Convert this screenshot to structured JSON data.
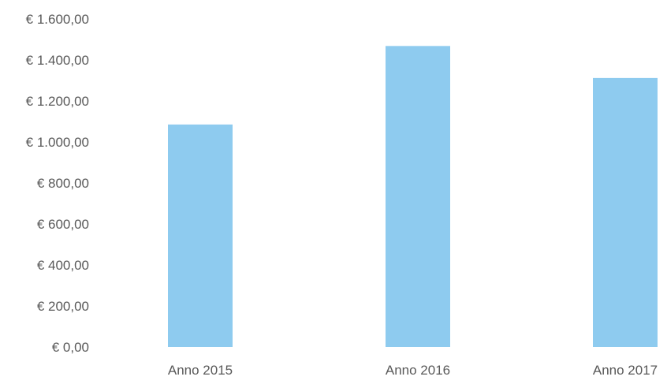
{
  "chart_data": {
    "type": "bar",
    "title": "",
    "xlabel": "",
    "ylabel": "",
    "categories": [
      "Anno 2015",
      "Anno 2016",
      "Anno 2017"
    ],
    "values": [
      1085,
      1468,
      1312
    ],
    "ylim": [
      0,
      1600
    ],
    "yticks": [
      0,
      200,
      400,
      600,
      800,
      1000,
      1200,
      1400,
      1600
    ],
    "ytick_labels": [
      "€ 0,00",
      "€ 200,00",
      "€ 400,00",
      "€ 600,00",
      "€ 800,00",
      "€ 1.000,00",
      "€ 1.200,00",
      "€ 1.400,00",
      "€ 1.600,00"
    ],
    "grid": false,
    "legend": "none",
    "colors": {
      "bar": "#8ecbef",
      "tick_label": "#595959"
    }
  }
}
